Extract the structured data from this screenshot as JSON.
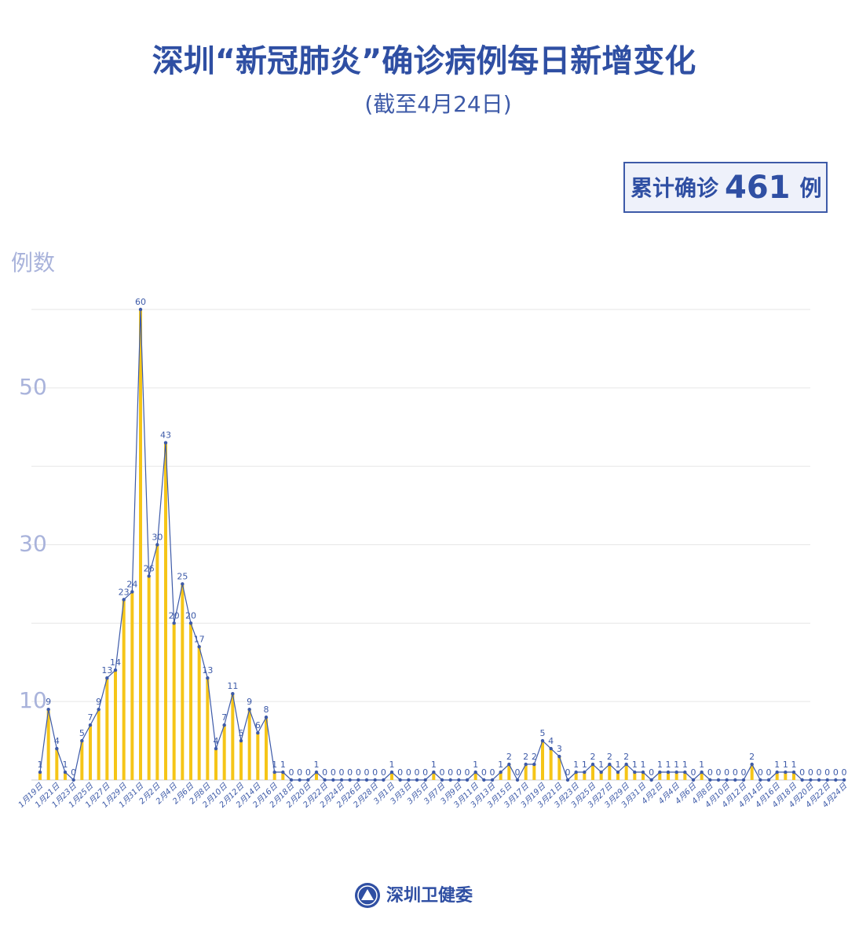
{
  "chart_data": {
    "type": "bar-line",
    "title": "深圳“新冠肺炎”确诊病例每日新增变化",
    "subtitle": "(截至4月24日)",
    "total_label": "累计确诊",
    "total_value": 461,
    "total_unit": "例",
    "y_axis_label": "例数",
    "source": "深圳卫健委",
    "bar_color": "#f5c518",
    "line_color": "#3d5aa8",
    "ylim": [
      0,
      60
    ],
    "yticks": [
      10,
      30,
      50
    ],
    "gridlines": [
      20,
      40,
      60
    ],
    "categories": [
      "1月19日",
      null,
      "1月21日",
      null,
      "1月23日",
      null,
      "1月25日",
      null,
      "1月27日",
      null,
      "1月29日",
      null,
      "1月31日",
      null,
      "2月2日",
      null,
      "2月4日",
      null,
      "2月6日",
      null,
      "2月8日",
      null,
      "2月10日",
      null,
      "2月12日",
      null,
      "2月14日",
      null,
      "2月16日",
      null,
      "2月18日",
      null,
      "2月20日",
      null,
      "2月22日",
      null,
      "2月24日",
      null,
      "2月26日",
      null,
      "2月28日",
      null,
      "3月1日",
      null,
      "3月3日",
      null,
      "3月5日",
      null,
      "3月7日",
      null,
      "3月9日",
      null,
      "3月11日",
      null,
      "3月13日",
      null,
      "3月15日",
      null,
      "3月17日",
      null,
      "3月19日",
      null,
      "3月21日",
      null,
      "3月23日",
      null,
      "3月25日",
      null,
      "3月27日",
      null,
      "3月29日",
      null,
      "3月31日",
      null,
      "4月2日",
      null,
      "4月4日",
      null,
      "4月6日",
      null,
      "4月8日",
      null,
      "4月10日",
      null,
      "4月12日",
      null,
      "4月14日",
      null,
      "4月16日",
      null,
      "4月18日",
      null,
      "4月20日",
      null,
      "4月22日",
      null,
      "4月24日"
    ],
    "values": [
      1,
      9,
      4,
      1,
      0,
      5,
      7,
      9,
      13,
      14,
      23,
      24,
      60,
      26,
      30,
      43,
      20,
      25,
      20,
      17,
      13,
      4,
      7,
      11,
      5,
      9,
      6,
      8,
      1,
      1,
      0,
      0,
      0,
      1,
      0,
      0,
      0,
      0,
      0,
      0,
      0,
      0,
      1,
      0,
      0,
      0,
      0,
      1,
      0,
      0,
      0,
      0,
      1,
      0,
      0,
      1,
      2,
      0,
      2,
      2,
      5,
      4,
      3,
      0,
      1,
      1,
      2,
      1,
      2,
      1,
      2,
      1,
      1,
      0,
      1,
      1,
      1,
      1,
      0,
      1,
      0,
      0,
      0,
      0,
      0,
      2,
      0,
      0,
      1,
      1,
      1,
      0,
      0,
      0,
      0,
      0,
      0
    ]
  }
}
